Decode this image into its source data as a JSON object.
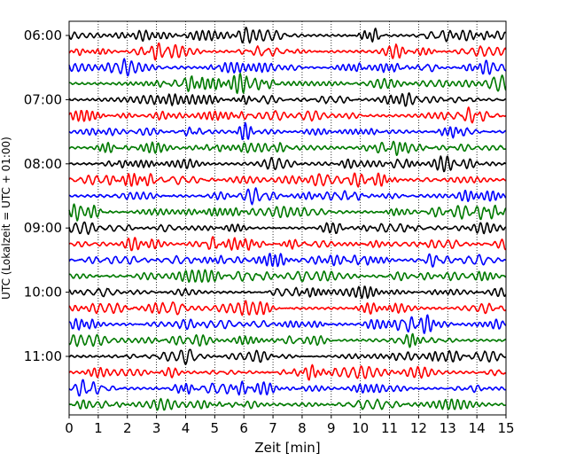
{
  "chart_data": {
    "type": "line",
    "subtype": "helicorder",
    "xlabel": "Zeit  [min]",
    "ylabel": "UTC (Lokalzeit = UTC + 01:00)",
    "xlim": [
      0,
      15
    ],
    "x_ticks": [
      0,
      1,
      2,
      3,
      4,
      5,
      6,
      7,
      8,
      9,
      10,
      11,
      12,
      13,
      14,
      15
    ],
    "x_tick_labels": [
      "0",
      "1",
      "2",
      "3",
      "4",
      "5",
      "6",
      "7",
      "8",
      "9",
      "10",
      "11",
      "12",
      "13",
      "14",
      "15"
    ],
    "y_tick_labels": [
      "06:00",
      "07:00",
      "08:00",
      "09:00",
      "10:00",
      "11:00"
    ],
    "y_tick_trace_index": [
      0,
      4,
      8,
      12,
      16,
      20
    ],
    "grid_vertical": true,
    "grid_style": "dotted",
    "trace_count": 24,
    "trace_minutes": 15,
    "start_time": "06:00",
    "colors": [
      "#000000",
      "#ff0000",
      "#0000ff",
      "#007a00"
    ]
  }
}
